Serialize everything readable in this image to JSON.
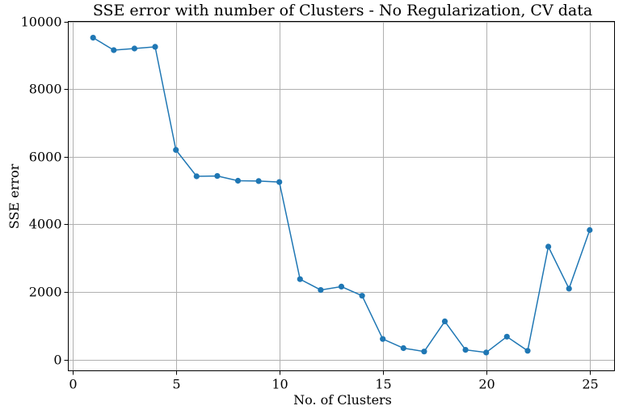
{
  "chart_data": {
    "type": "line",
    "title": "SSE error with number of Clusters - No Regularization, CV data",
    "xlabel": "No. of Clusters",
    "ylabel": "SSE error",
    "xlim": [
      -0.2,
      26.2
    ],
    "ylim": [
      -330,
      10000
    ],
    "xticks": [
      0,
      5,
      10,
      15,
      20,
      25
    ],
    "yticks": [
      0,
      2000,
      4000,
      6000,
      8000,
      10000
    ],
    "grid": true,
    "color": "#1f77b4",
    "series": [
      {
        "x": [
          1,
          2,
          3,
          4,
          5,
          6,
          7,
          8,
          9,
          10,
          11,
          12,
          13,
          14,
          15,
          16,
          17,
          18,
          19,
          20,
          21,
          22,
          23,
          24,
          25
        ],
        "values": [
          9520,
          9150,
          9200,
          9250,
          6200,
          5420,
          5430,
          5290,
          5280,
          5250,
          2380,
          2060,
          2160,
          1890,
          610,
          340,
          240,
          1130,
          290,
          210,
          680,
          260,
          3340,
          2100,
          3830
        ]
      }
    ]
  }
}
